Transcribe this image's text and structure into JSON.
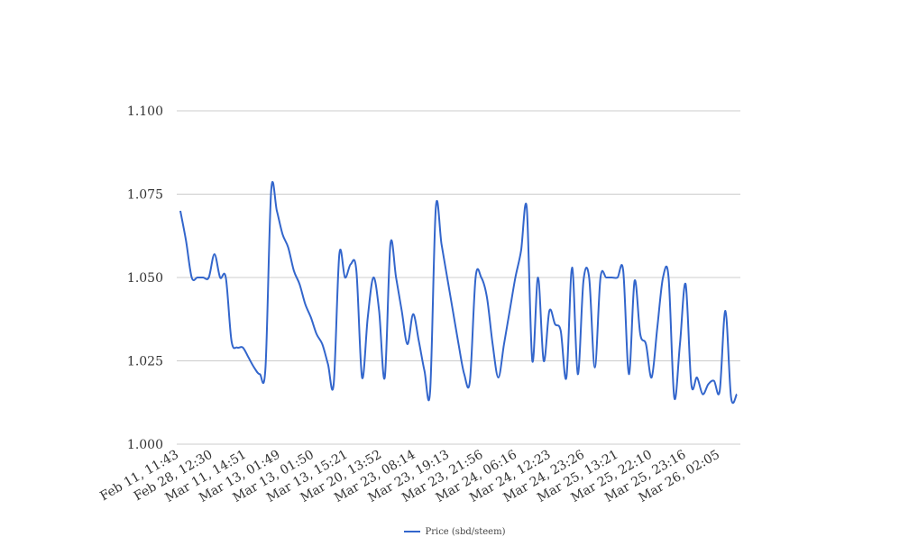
{
  "chart_data": {
    "type": "line",
    "title": "",
    "xlabel": "",
    "ylabel": "",
    "ylim": [
      1.0,
      1.1
    ],
    "yticks": [
      "1.000",
      "1.025",
      "1.050",
      "1.075",
      "1.100"
    ],
    "xtick_labels": [
      "Feb 11, 11:43",
      "Feb 28, 12:30",
      "Mar 11, 14:51",
      "Mar 13, 01:49",
      "Mar 13, 01:50",
      "Mar 13, 15:21",
      "Mar 20, 13:52",
      "Mar 23, 08:14",
      "Mar 23, 19:13",
      "Mar 23, 21:56",
      "Mar 24, 06:16",
      "Mar 24, 12:23",
      "Mar 24, 23:26",
      "Mar 25, 13:21",
      "Mar 25, 22:10",
      "Mar 25, 23:16",
      "Mar 26, 02:05"
    ],
    "grid": true,
    "legend_position": "bottom",
    "series": [
      {
        "name": "Price (sbd/steem)",
        "color": "#3366cc",
        "values": [
          1.07,
          1.061,
          1.05,
          1.05,
          1.05,
          1.05,
          1.057,
          1.05,
          1.05,
          1.031,
          1.029,
          1.029,
          1.026,
          1.023,
          1.021,
          1.023,
          1.076,
          1.07,
          1.063,
          1.059,
          1.052,
          1.048,
          1.042,
          1.038,
          1.033,
          1.03,
          1.024,
          1.018,
          1.057,
          1.05,
          1.054,
          1.052,
          1.02,
          1.038,
          1.05,
          1.04,
          1.02,
          1.06,
          1.05,
          1.04,
          1.03,
          1.039,
          1.031,
          1.022,
          1.016,
          1.071,
          1.06,
          1.05,
          1.04,
          1.03,
          1.021,
          1.019,
          1.05,
          1.05,
          1.044,
          1.03,
          1.02,
          1.03,
          1.04,
          1.05,
          1.058,
          1.071,
          1.025,
          1.05,
          1.025,
          1.04,
          1.036,
          1.034,
          1.02,
          1.053,
          1.021,
          1.049,
          1.05,
          1.023,
          1.05,
          1.05,
          1.05,
          1.05,
          1.052,
          1.021,
          1.049,
          1.033,
          1.03,
          1.02,
          1.035,
          1.05,
          1.05,
          1.014,
          1.03,
          1.048,
          1.018,
          1.02,
          1.015,
          1.018,
          1.019,
          1.016,
          1.04,
          1.014,
          1.015
        ]
      }
    ]
  },
  "legend": {
    "label": "Price (sbd/steem)"
  }
}
